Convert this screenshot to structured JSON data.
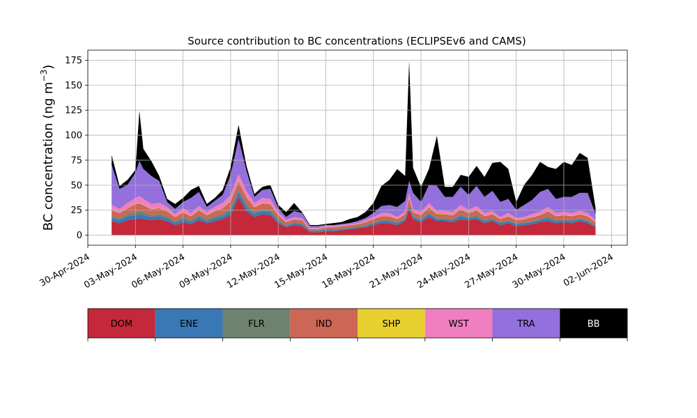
{
  "chart_data": {
    "type": "area",
    "stacked": true,
    "title": "Source contribution to BC concentrations (ECLIPSEv6 and CAMS)",
    "ylabel": "BC concentration (ng m",
    "ylabel_superscript": "−3",
    "ylabel_suffix": ")",
    "xlabel": "",
    "ylim": [
      -10,
      185
    ],
    "xlim": [
      "2024-04-30",
      "2024-06-03"
    ],
    "yticks": [
      0,
      25,
      50,
      75,
      100,
      125,
      150,
      175
    ],
    "xticks": [
      "30-Apr-2024",
      "03-May-2024",
      "06-May-2024",
      "09-May-2024",
      "12-May-2024",
      "15-May-2024",
      "18-May-2024",
      "21-May-2024",
      "24-May-2024",
      "27-May-2024",
      "30-May-2024",
      "02-Jun-2024"
    ],
    "grid": true,
    "x": [
      "2024-05-01 12:00",
      "2024-05-02 00:00",
      "2024-05-02 12:00",
      "2024-05-03 00:00",
      "2024-05-03 06:00",
      "2024-05-03 12:00",
      "2024-05-04 00:00",
      "2024-05-04 12:00",
      "2024-05-05 00:00",
      "2024-05-05 12:00",
      "2024-05-06 00:00",
      "2024-05-06 12:00",
      "2024-05-07 00:00",
      "2024-05-07 12:00",
      "2024-05-08 00:00",
      "2024-05-08 12:00",
      "2024-05-09 00:00",
      "2024-05-09 12:00",
      "2024-05-10 00:00",
      "2024-05-10 12:00",
      "2024-05-11 00:00",
      "2024-05-11 12:00",
      "2024-05-12 00:00",
      "2024-05-12 12:00",
      "2024-05-13 00:00",
      "2024-05-13 12:00",
      "2024-05-14 00:00",
      "2024-05-14 12:00",
      "2024-05-15 00:00",
      "2024-05-15 12:00",
      "2024-05-16 00:00",
      "2024-05-16 12:00",
      "2024-05-17 00:00",
      "2024-05-17 12:00",
      "2024-05-18 00:00",
      "2024-05-18 12:00",
      "2024-05-19 00:00",
      "2024-05-19 12:00",
      "2024-05-20 00:00",
      "2024-05-20 06:00",
      "2024-05-20 12:00",
      "2024-05-21 00:00",
      "2024-05-21 12:00",
      "2024-05-22 00:00",
      "2024-05-22 12:00",
      "2024-05-23 00:00",
      "2024-05-23 12:00",
      "2024-05-24 00:00",
      "2024-05-24 12:00",
      "2024-05-25 00:00",
      "2024-05-25 12:00",
      "2024-05-26 00:00",
      "2024-05-26 12:00",
      "2024-05-27 00:00",
      "2024-05-27 12:00",
      "2024-05-28 00:00",
      "2024-05-28 12:00",
      "2024-05-29 00:00",
      "2024-05-29 12:00",
      "2024-05-30 00:00",
      "2024-05-30 12:00",
      "2024-05-31 00:00",
      "2024-05-31 12:00",
      "2024-06-01 00:00"
    ],
    "series": [
      {
        "name": "DOM",
        "color": "#c4283a",
        "values": [
          14,
          12,
          15,
          16,
          17,
          16,
          15,
          16,
          14,
          10,
          13,
          11,
          15,
          12,
          14,
          16,
          20,
          38,
          24,
          18,
          21,
          20,
          12,
          8,
          10,
          9,
          3,
          3,
          4,
          4,
          5,
          6,
          7,
          8,
          10,
          12,
          12,
          10,
          14,
          26,
          16,
          13,
          18,
          14,
          14,
          13,
          16,
          15,
          16,
          12,
          14,
          10,
          12,
          9,
          10,
          11,
          13,
          14,
          12,
          13,
          12,
          14,
          12,
          8
        ]
      },
      {
        "name": "ENE",
        "color": "#3a78b5",
        "values": [
          3,
          3,
          4,
          4,
          4,
          4,
          3,
          3,
          3,
          2,
          3,
          2,
          3,
          2,
          3,
          3,
          4,
          5,
          4,
          3,
          3,
          3,
          2,
          1,
          2,
          2,
          1,
          1,
          1,
          1,
          1,
          1,
          1,
          1,
          2,
          2,
          2,
          2,
          2,
          3,
          2,
          2,
          3,
          2,
          2,
          2,
          3,
          2,
          2,
          2,
          2,
          2,
          2,
          2,
          2,
          2,
          2,
          3,
          2,
          2,
          2,
          2,
          2,
          1
        ]
      },
      {
        "name": "FLR",
        "color": "#6e8270",
        "values": [
          2,
          2,
          2,
          3,
          3,
          3,
          2,
          2,
          2,
          2,
          2,
          2,
          2,
          2,
          2,
          2,
          3,
          3,
          3,
          2,
          2,
          2,
          2,
          1,
          1,
          1,
          1,
          1,
          1,
          1,
          1,
          1,
          1,
          1,
          1,
          1,
          1,
          1,
          1,
          2,
          1,
          1,
          2,
          1,
          1,
          1,
          2,
          1,
          2,
          1,
          1,
          1,
          1,
          1,
          1,
          1,
          1,
          2,
          1,
          1,
          1,
          1,
          1,
          1
        ]
      },
      {
        "name": "IND",
        "color": "#cc6655",
        "values": [
          6,
          5,
          6,
          8,
          8,
          7,
          6,
          6,
          5,
          4,
          5,
          4,
          5,
          4,
          5,
          6,
          7,
          8,
          7,
          5,
          6,
          6,
          4,
          3,
          3,
          3,
          1,
          1,
          2,
          2,
          2,
          2,
          2,
          3,
          3,
          4,
          4,
          3,
          4,
          6,
          4,
          4,
          5,
          4,
          4,
          4,
          5,
          4,
          5,
          4,
          4,
          3,
          4,
          3,
          3,
          4,
          4,
          5,
          4,
          4,
          4,
          4,
          4,
          3
        ]
      },
      {
        "name": "SHP",
        "color": "#e8d030",
        "values": [
          0.3,
          0.3,
          0.3,
          0.3,
          0.3,
          0.3,
          0.3,
          0.3,
          0.3,
          0.3,
          0.3,
          0.3,
          0.3,
          0.3,
          0.3,
          0.3,
          0.3,
          0.3,
          0.3,
          0.3,
          0.3,
          0.3,
          0.3,
          0.2,
          0.2,
          0.2,
          0.2,
          0.2,
          0.2,
          0.2,
          0.2,
          0.2,
          0.2,
          0.2,
          0.2,
          0.2,
          0.2,
          0.2,
          0.2,
          0.3,
          0.3,
          0.3,
          0.3,
          0.3,
          0.3,
          0.3,
          0.3,
          0.3,
          0.3,
          0.3,
          0.3,
          0.3,
          0.3,
          0.3,
          0.3,
          0.3,
          0.3,
          0.3,
          0.3,
          0.3,
          0.3,
          0.3,
          0.3,
          0.2
        ]
      },
      {
        "name": "WST",
        "color": "#f07fbf",
        "values": [
          5,
          4,
          5,
          6,
          7,
          6,
          5,
          5,
          4,
          3,
          4,
          3,
          4,
          3,
          4,
          5,
          6,
          7,
          6,
          4,
          5,
          5,
          3,
          2,
          2,
          2,
          1,
          1,
          1,
          1,
          1,
          1,
          1,
          2,
          2,
          3,
          3,
          2,
          3,
          5,
          3,
          3,
          4,
          3,
          3,
          3,
          4,
          3,
          4,
          3,
          3,
          2,
          3,
          2,
          2,
          3,
          3,
          4,
          3,
          3,
          3,
          3,
          3,
          2
        ]
      },
      {
        "name": "TRA",
        "color": "#9370db",
        "values": [
          40,
          20,
          18,
          25,
          35,
          30,
          28,
          22,
          5,
          5,
          6,
          15,
          14,
          5,
          6,
          8,
          20,
          35,
          20,
          6,
          8,
          10,
          4,
          3,
          6,
          5,
          2,
          2,
          1,
          1,
          1,
          1,
          2,
          2,
          4,
          7,
          8,
          10,
          10,
          12,
          16,
          10,
          18,
          25,
          14,
          15,
          18,
          15,
          20,
          16,
          20,
          15,
          14,
          8,
          12,
          14,
          20,
          18,
          14,
          15,
          16,
          18,
          20,
          6
        ]
      },
      {
        "name": "BB",
        "color": "#000000",
        "values": [
          10,
          3,
          5,
          3,
          50,
          20,
          15,
          5,
          3,
          5,
          4,
          8,
          6,
          3,
          3,
          5,
          8,
          14,
          5,
          3,
          3,
          4,
          3,
          5,
          8,
          1,
          1,
          1,
          1,
          2,
          2,
          4,
          4,
          6,
          10,
          20,
          25,
          38,
          25,
          120,
          25,
          15,
          16,
          50,
          10,
          10,
          12,
          18,
          20,
          20,
          28,
          40,
          30,
          8,
          20,
          25,
          30,
          22,
          30,
          35,
          32,
          40,
          35,
          6
        ]
      }
    ]
  }
}
